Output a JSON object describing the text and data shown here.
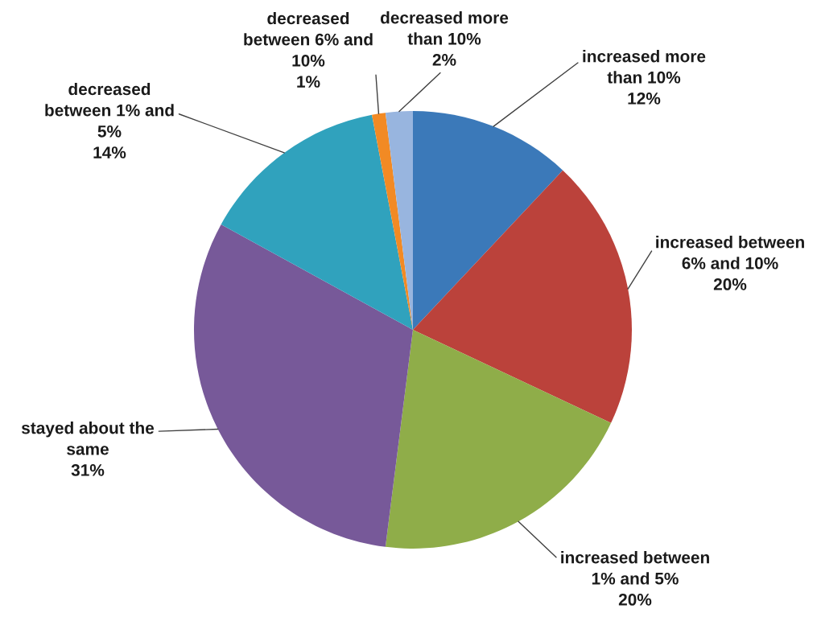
{
  "chart_data": {
    "type": "pie",
    "categories": [
      "increased more\nthan 10%",
      "increased between\n6% and 10%",
      "increased between\n1% and 5%",
      "stayed about the\nsame",
      "decreased\nbetween 1% and\n5%",
      "decreased\nbetween 6% and\n10%",
      "decreased more\nthan 10%"
    ],
    "values": [
      12,
      20,
      20,
      31,
      14,
      1,
      2
    ],
    "value_labels": [
      "12%",
      "20%",
      "20%",
      "31%",
      "14%",
      "1%",
      "2%"
    ],
    "colors": [
      "#3b79b9",
      "#bb423b",
      "#8fad49",
      "#775999",
      "#30a2bd",
      "#f28a24",
      "#98b5df"
    ]
  }
}
